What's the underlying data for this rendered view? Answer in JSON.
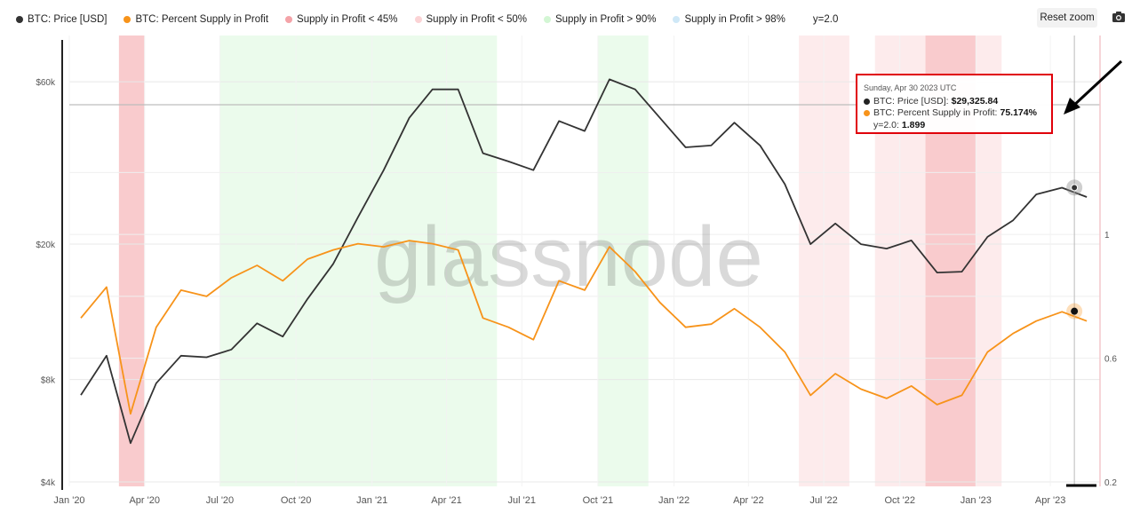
{
  "legend": {
    "items": [
      {
        "label": "BTC: Price [USD]",
        "color": "#333333",
        "shape": "dot"
      },
      {
        "label": "BTC: Percent Supply in Profit",
        "color": "#f7931a",
        "shape": "dot"
      },
      {
        "label": "Supply in Profit < 45%",
        "color": "#f4a3a8",
        "shape": "dot"
      },
      {
        "label": "Supply in Profit < 50%",
        "color": "#fbd3d5",
        "shape": "dot"
      },
      {
        "label": "Supply in Profit > 90%",
        "color": "#d3f6d4",
        "shape": "dot"
      },
      {
        "label": "Supply in Profit > 98%",
        "color": "#cfe8f7",
        "shape": "dot"
      },
      {
        "label": "y=2.0",
        "color": "",
        "shape": "none"
      }
    ]
  },
  "toolbar": {
    "reset_zoom_label": "Reset zoom",
    "camera_icon": "camera-icon"
  },
  "watermark": "glassnode",
  "tooltip": {
    "date": "Sunday, Apr 30 2023 UTC",
    "rows": [
      {
        "label": "BTC: Price [USD]:",
        "value": "$29,325.84",
        "color": "#222222"
      },
      {
        "label": "BTC: Percent Supply in Profit:",
        "value": "75.174%",
        "color": "#f7931a"
      },
      {
        "label": "y=2.0:",
        "value": "1.899",
        "color": ""
      }
    ]
  },
  "chart_data": {
    "type": "line",
    "x_ticks": [
      "Jan '20",
      "Apr '20",
      "Jul '20",
      "Oct '20",
      "Jan '21",
      "Apr '21",
      "Jul '21",
      "Oct '21",
      "Jan '22",
      "Apr '22",
      "Jul '22",
      "Oct '22",
      "Jan '23",
      "Apr '23"
    ],
    "y_left_ticks": [
      "$60k",
      "$20k",
      "$8k",
      "$4k"
    ],
    "y_right_ticks": [
      "1",
      "0.6",
      "0.2"
    ],
    "y_left_scale": "log",
    "y_left_range": [
      4000,
      75000
    ],
    "y_right_range": [
      0.2,
      1.6
    ],
    "reference_line": {
      "label": "y=2.0",
      "value": 2.0
    },
    "x": [
      "2020-01",
      "2020-02",
      "2020-03",
      "2020-04",
      "2020-05",
      "2020-06",
      "2020-07",
      "2020-08",
      "2020-09",
      "2020-10",
      "2020-11",
      "2020-12",
      "2021-01",
      "2021-02",
      "2021-03",
      "2021-04",
      "2021-05",
      "2021-06",
      "2021-07",
      "2021-08",
      "2021-09",
      "2021-10",
      "2021-11",
      "2021-12",
      "2022-01",
      "2022-02",
      "2022-03",
      "2022-04",
      "2022-05",
      "2022-06",
      "2022-07",
      "2022-08",
      "2022-09",
      "2022-10",
      "2022-11",
      "2022-12",
      "2023-01",
      "2023-02",
      "2023-03",
      "2023-04",
      "2023-05"
    ],
    "series": [
      {
        "name": "BTC: Price [USD]",
        "axis": "left",
        "color": "#333333",
        "values": [
          7200,
          9400,
          5200,
          7800,
          9400,
          9300,
          9800,
          11700,
          10700,
          13800,
          17500,
          24000,
          33000,
          47000,
          57000,
          57000,
          37000,
          35000,
          33000,
          46000,
          43000,
          61000,
          57000,
          47000,
          38500,
          39000,
          45500,
          39000,
          30000,
          20000,
          23000,
          20000,
          19400,
          20500,
          16500,
          16600,
          21000,
          23500,
          28000,
          29300,
          27500
        ]
      },
      {
        "name": "BTC: Percent Supply in Profit",
        "axis": "right",
        "color": "#f7931a",
        "values": [
          0.73,
          0.83,
          0.42,
          0.7,
          0.82,
          0.8,
          0.86,
          0.9,
          0.85,
          0.92,
          0.95,
          0.97,
          0.96,
          0.98,
          0.97,
          0.95,
          0.73,
          0.7,
          0.66,
          0.85,
          0.82,
          0.96,
          0.88,
          0.78,
          0.7,
          0.71,
          0.76,
          0.7,
          0.62,
          0.48,
          0.55,
          0.5,
          0.47,
          0.51,
          0.45,
          0.48,
          0.62,
          0.68,
          0.72,
          0.75,
          0.72
        ]
      }
    ],
    "bands": [
      {
        "name": "Supply in Profit > 90%",
        "color": "#d3f6d4",
        "periods": [
          [
            "2020-07",
            "2020-09"
          ],
          [
            "2020-10",
            "2021-05"
          ],
          [
            "2021-10",
            "2021-11"
          ]
        ]
      },
      {
        "name": "Supply in Profit < 50%",
        "color": "#fbd3d5",
        "periods": [
          [
            "2020-03",
            "2020-03"
          ],
          [
            "2022-06",
            "2022-07"
          ],
          [
            "2022-09",
            "2023-01"
          ]
        ]
      },
      {
        "name": "Supply in Profit < 45%",
        "color": "#f4a3a8",
        "periods": [
          [
            "2020-03",
            "2020-03"
          ],
          [
            "2022-11",
            "2022-12"
          ]
        ]
      }
    ],
    "highlight": {
      "date": "2023-04-30",
      "price": 29325.84,
      "supply": 0.75174
    }
  }
}
